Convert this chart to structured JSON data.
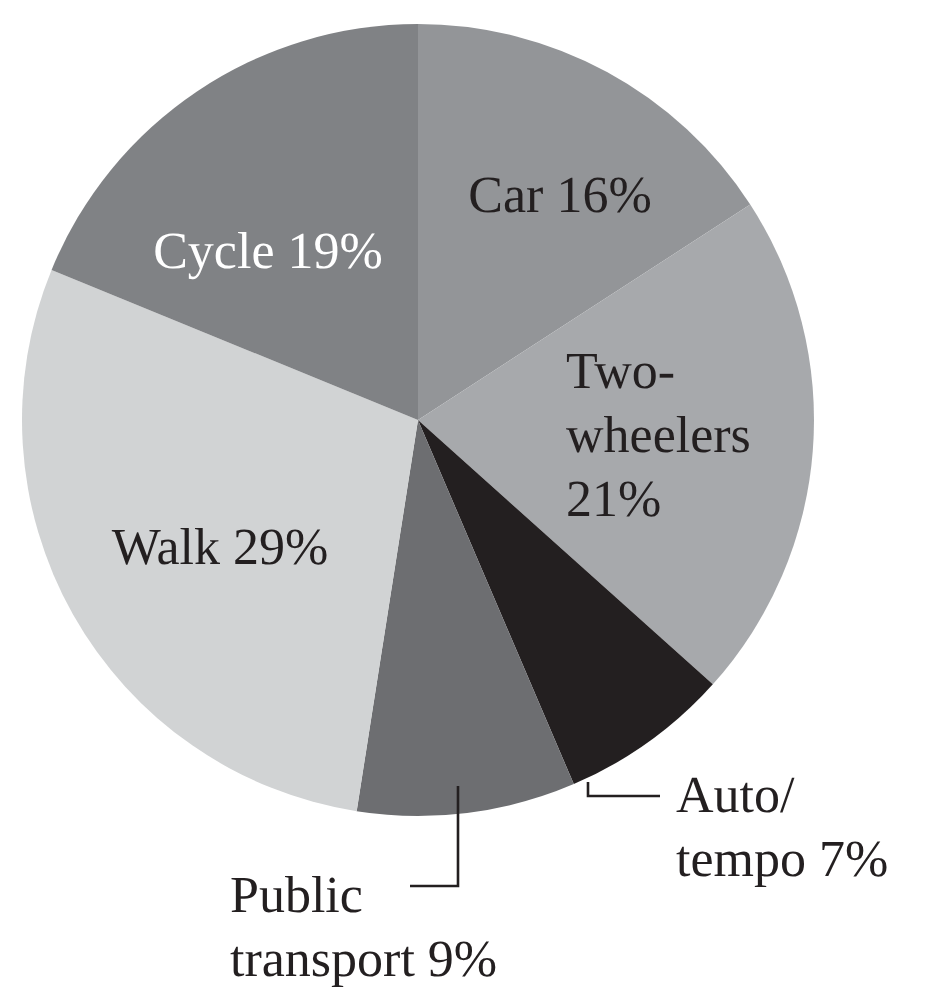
{
  "chart_data": {
    "type": "pie",
    "categories": [
      "Car",
      "Two-wheelers",
      "Auto/tempo",
      "Public transport",
      "Walk",
      "Cycle"
    ],
    "values": [
      16,
      21,
      7,
      9,
      29,
      19
    ],
    "value_labels": [
      "16%",
      "21%",
      "7%",
      "9%",
      "29%",
      "19%"
    ],
    "colors": [
      "#939598",
      "#a7a9ac",
      "#231f20",
      "#6d6e71",
      "#d1d3d4",
      "#808285"
    ]
  }
}
